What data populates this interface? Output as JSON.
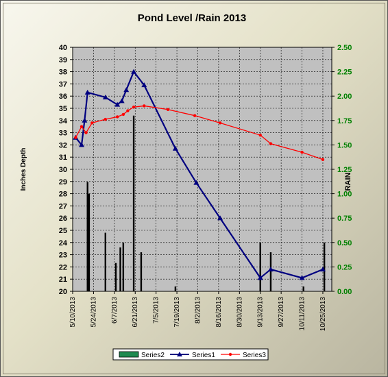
{
  "chart_data": {
    "type": "bar+line",
    "title": "Pond Level /Rain 2013",
    "ylabel_left": "Inches Depth",
    "ylabel_right": "RAIN",
    "ylim_left": [
      20,
      40
    ],
    "ylim_right": [
      0,
      2.5
    ],
    "yticks_left": [
      "20",
      "21",
      "22",
      "23",
      "24",
      "25",
      "26",
      "27",
      "28",
      "29",
      "30",
      "31",
      "32",
      "33",
      "34",
      "35",
      "36",
      "37",
      "38",
      "39",
      "40"
    ],
    "yticks_right": [
      "0.00",
      "0.25",
      "0.50",
      "0.75",
      "1.00",
      "1.25",
      "1.50",
      "1.75",
      "2.00",
      "2.25",
      "2.50"
    ],
    "xlim": [
      "2013-05-10",
      "2013-10-31"
    ],
    "xticks": [
      "5/10/2013",
      "5/24/2013",
      "6/7/2013",
      "6/21/2013",
      "7/5/2013",
      "7/19/2013",
      "8/2/2013",
      "8/16/2013",
      "8/30/2013",
      "9/13/2013",
      "9/27/2013",
      "10/11/2013",
      "10/25/2013"
    ],
    "grid": true,
    "legend_position": "bottom",
    "colors": {
      "plot_bg": "#c0c0c0",
      "series1": "#000080",
      "series2": "#000000",
      "series2_legend": "#1e8a50",
      "series3": "#ff0000",
      "right_axis": "#008000",
      "grid": "#000000"
    },
    "series": [
      {
        "name": "Series2",
        "axis": "right",
        "type": "bar",
        "points": [
          [
            "2013-05-20",
            1.12
          ],
          [
            "2013-05-21",
            1.0
          ],
          [
            "2013-06-01",
            0.6
          ],
          [
            "2013-06-08",
            0.29
          ],
          [
            "2013-06-11",
            0.45
          ],
          [
            "2013-06-13",
            0.5
          ],
          [
            "2013-06-20",
            1.8
          ],
          [
            "2013-06-25",
            0.4
          ],
          [
            "2013-07-18",
            0.05
          ],
          [
            "2013-09-13",
            0.5
          ],
          [
            "2013-09-20",
            0.4
          ],
          [
            "2013-10-12",
            0.05
          ],
          [
            "2013-10-26",
            0.5
          ]
        ]
      },
      {
        "name": "Series1",
        "axis": "left",
        "type": "line",
        "points": [
          [
            "2013-05-12",
            32.6
          ],
          [
            "2013-05-16",
            32.0
          ],
          [
            "2013-05-18",
            34.0
          ],
          [
            "2013-05-20",
            36.3
          ],
          [
            "2013-06-01",
            35.9
          ],
          [
            "2013-06-09",
            35.3
          ],
          [
            "2013-06-12",
            35.6
          ],
          [
            "2013-06-15",
            36.5
          ],
          [
            "2013-06-20",
            38.0
          ],
          [
            "2013-06-27",
            36.9
          ],
          [
            "2013-07-18",
            31.7
          ],
          [
            "2013-08-01",
            28.9
          ],
          [
            "2013-08-17",
            26.0
          ],
          [
            "2013-09-13",
            21.1
          ],
          [
            "2013-09-20",
            21.8
          ],
          [
            "2013-10-11",
            21.1
          ],
          [
            "2013-10-25",
            21.8
          ]
        ]
      },
      {
        "name": "Series3",
        "axis": "left",
        "type": "line",
        "points": [
          [
            "2013-05-12",
            32.6
          ],
          [
            "2013-05-16",
            33.5
          ],
          [
            "2013-05-19",
            33.0
          ],
          [
            "2013-05-23",
            33.8
          ],
          [
            "2013-06-01",
            34.1
          ],
          [
            "2013-06-09",
            34.3
          ],
          [
            "2013-06-13",
            34.5
          ],
          [
            "2013-06-16",
            34.8
          ],
          [
            "2013-06-20",
            35.1
          ],
          [
            "2013-06-27",
            35.2
          ],
          [
            "2013-07-13",
            34.9
          ],
          [
            "2013-07-31",
            34.4
          ],
          [
            "2013-08-17",
            33.8
          ],
          [
            "2013-09-13",
            32.8
          ],
          [
            "2013-09-20",
            32.1
          ],
          [
            "2013-10-11",
            31.4
          ],
          [
            "2013-10-25",
            30.8
          ]
        ]
      }
    ]
  }
}
